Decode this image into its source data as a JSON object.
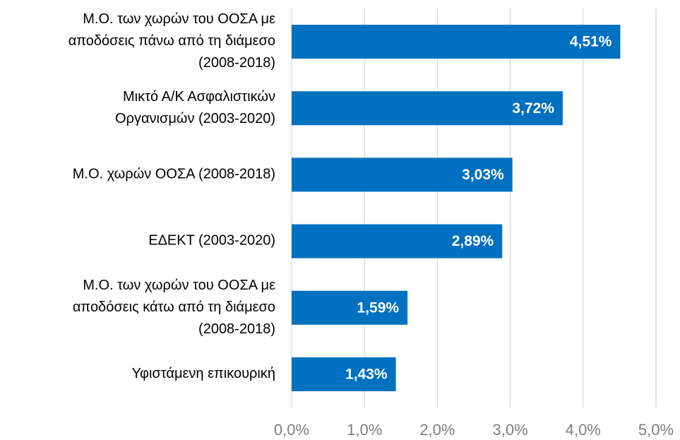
{
  "chart_data": {
    "type": "barh",
    "categories": [
      [
        "Μ.Ο.  των χωρών του ΟΟΣΑ με",
        "αποδόσεις πάνω από τη διάμεσο",
        "(2008-2018)"
      ],
      [
        "Μικτό Α/Κ  Ασφαλιστικών",
        "Οργανισμών (2003-2020)"
      ],
      [
        "Μ.Ο.  χωρών ΟΟΣΑ (2008-2018)"
      ],
      [
        "ΕΔΕΚΤ (2003-2020)"
      ],
      [
        "Μ.Ο.  των χωρών του ΟΟΣΑ με",
        "αποδόσεις κάτω από τη διάμεσο",
        "(2008-2018)"
      ],
      [
        "Υφιστάμενη επικουρική"
      ]
    ],
    "values": [
      4.51,
      3.72,
      3.03,
      2.89,
      1.59,
      1.43
    ],
    "value_labels": [
      "4,51%",
      "3,72%",
      "3,03%",
      "2,89%",
      "1,59%",
      "1,43%"
    ],
    "color": "#0070c0",
    "xlim": [
      0,
      5
    ],
    "xticks": [
      {
        "value": 0,
        "label": "0,0%"
      },
      {
        "value": 1,
        "label": "1,0%"
      },
      {
        "value": 2,
        "label": "2,0%"
      },
      {
        "value": 3,
        "label": "3,0%"
      },
      {
        "value": 4,
        "label": "4,0%"
      },
      {
        "value": 5,
        "label": "5,0%"
      }
    ],
    "grid": true
  }
}
